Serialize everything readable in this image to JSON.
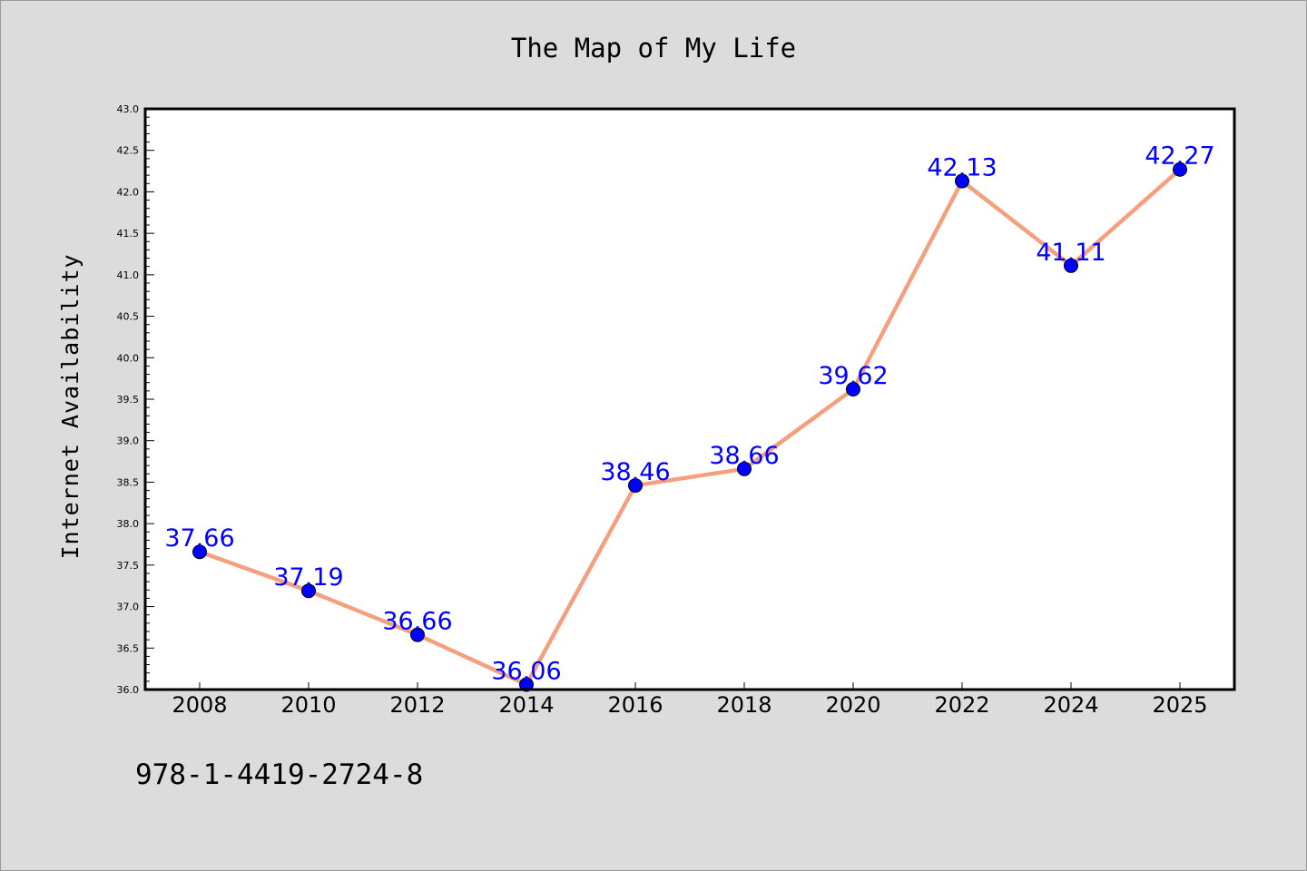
{
  "chart_data": {
    "type": "line",
    "title": "The Map of My Life",
    "ylabel": "Internet Availability",
    "xlabel": "",
    "categories": [
      "2008",
      "2010",
      "2012",
      "2014",
      "2016",
      "2018",
      "2020",
      "2022",
      "2024",
      "2025"
    ],
    "values": [
      37.66,
      37.19,
      36.66,
      36.06,
      38.46,
      38.66,
      39.62,
      42.13,
      41.11,
      42.27
    ],
    "data_labels": [
      "37.66",
      "37.19",
      "36.66",
      "36.06",
      "38.46",
      "38.66",
      "39.62",
      "42.13",
      "41.11",
      "42.27"
    ],
    "ylim": [
      36.0,
      43.0
    ],
    "yticks": [
      "36.0",
      "36.5",
      "37.0",
      "37.5",
      "38.0",
      "38.5",
      "39.0",
      "39.5",
      "40.0",
      "40.5",
      "41.0",
      "41.5",
      "42.0",
      "42.5",
      "43.0"
    ],
    "grid": false,
    "legend": "none",
    "line_color": "#f4a07e",
    "marker_color": "#0000ff",
    "label_color": "#0000ff",
    "background_color": "#dcdcdc"
  },
  "footer": {
    "isbn": "978-1-4419-2724-8"
  }
}
